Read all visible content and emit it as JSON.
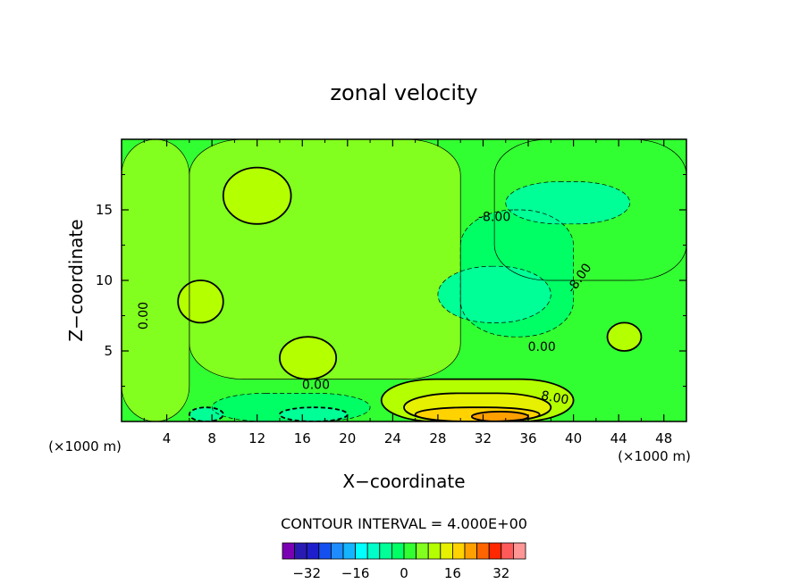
{
  "chart_data": {
    "type": "heatmap",
    "title": "zonal velocity",
    "xlabel": "X−coordinate",
    "ylabel": "Z−coordinate",
    "x_unit": "(×1000 m)",
    "y_unit": "(×1000 m)",
    "xlim": [
      0,
      50
    ],
    "ylim": [
      0,
      20
    ],
    "x_ticks": [
      4,
      8,
      12,
      16,
      20,
      24,
      28,
      32,
      36,
      40,
      44,
      48
    ],
    "y_ticks": [
      5,
      10,
      15
    ],
    "contour_interval_label": "CONTOUR INTERVAL = 4.000E+00",
    "contour_labels": [
      "0.00",
      "0.00",
      "0.00",
      "-8.00",
      "-8.00",
      "8.00"
    ],
    "colorbar": {
      "levels": [
        -36,
        -32,
        -28,
        -24,
        -20,
        -16,
        -12,
        -8,
        -4,
        0,
        4,
        8,
        12,
        16,
        20,
        24,
        28,
        32,
        36
      ],
      "tick_labels": [
        "−32",
        "−16",
        "0",
        "16",
        "32"
      ],
      "tick_values": [
        -32,
        -16,
        0,
        16,
        32
      ],
      "colors": [
        "#7b00b4",
        "#2a1ab4",
        "#1e1ecd",
        "#1450f0",
        "#1e8cff",
        "#14b4ff",
        "#00ffff",
        "#00ffc8",
        "#00ff96",
        "#00ff64",
        "#32ff32",
        "#82ff1e",
        "#b4ff00",
        "#e6f000",
        "#ffd200",
        "#ffa000",
        "#ff6400",
        "#ff2800",
        "#ff5a5a",
        "#ff9696"
      ]
    },
    "regions": [
      {
        "x": [
          0,
          50
        ],
        "z": [
          0,
          20
        ],
        "value": 2
      },
      {
        "x": [
          0,
          6
        ],
        "z": [
          0,
          20
        ],
        "value": 4
      },
      {
        "x": [
          6,
          30
        ],
        "z": [
          3,
          20
        ],
        "value": 6
      },
      {
        "x": [
          33,
          50
        ],
        "z": [
          10,
          20
        ],
        "value": 2
      },
      {
        "x": [
          30,
          40
        ],
        "z": [
          6,
          15
        ],
        "value": -4
      },
      {
        "x": [
          28,
          38
        ],
        "z": [
          7,
          11
        ],
        "value": -6
      },
      {
        "x": [
          34,
          45
        ],
        "z": [
          14,
          17
        ],
        "value": -6
      },
      {
        "x": [
          9,
          15
        ],
        "z": [
          14,
          18
        ],
        "value": 10
      },
      {
        "x": [
          5,
          9
        ],
        "z": [
          7,
          10
        ],
        "value": 10
      },
      {
        "x": [
          14,
          19
        ],
        "z": [
          3,
          6
        ],
        "value": 10
      },
      {
        "x": [
          43,
          46
        ],
        "z": [
          5,
          7
        ],
        "value": 10
      },
      {
        "x": [
          8,
          22
        ],
        "z": [
          0,
          2
        ],
        "value": -4
      },
      {
        "x": [
          14,
          20
        ],
        "z": [
          0,
          1
        ],
        "value": -8
      },
      {
        "x": [
          6,
          9
        ],
        "z": [
          0,
          1
        ],
        "value": -8
      },
      {
        "x": [
          23,
          40
        ],
        "z": [
          0,
          3
        ],
        "value": 8
      },
      {
        "x": [
          25,
          38
        ],
        "z": [
          0,
          2
        ],
        "value": 14
      },
      {
        "x": [
          26,
          37
        ],
        "z": [
          0,
          1
        ],
        "value": 18
      },
      {
        "x": [
          31,
          36
        ],
        "z": [
          0,
          0.7
        ],
        "value": 22
      }
    ]
  }
}
